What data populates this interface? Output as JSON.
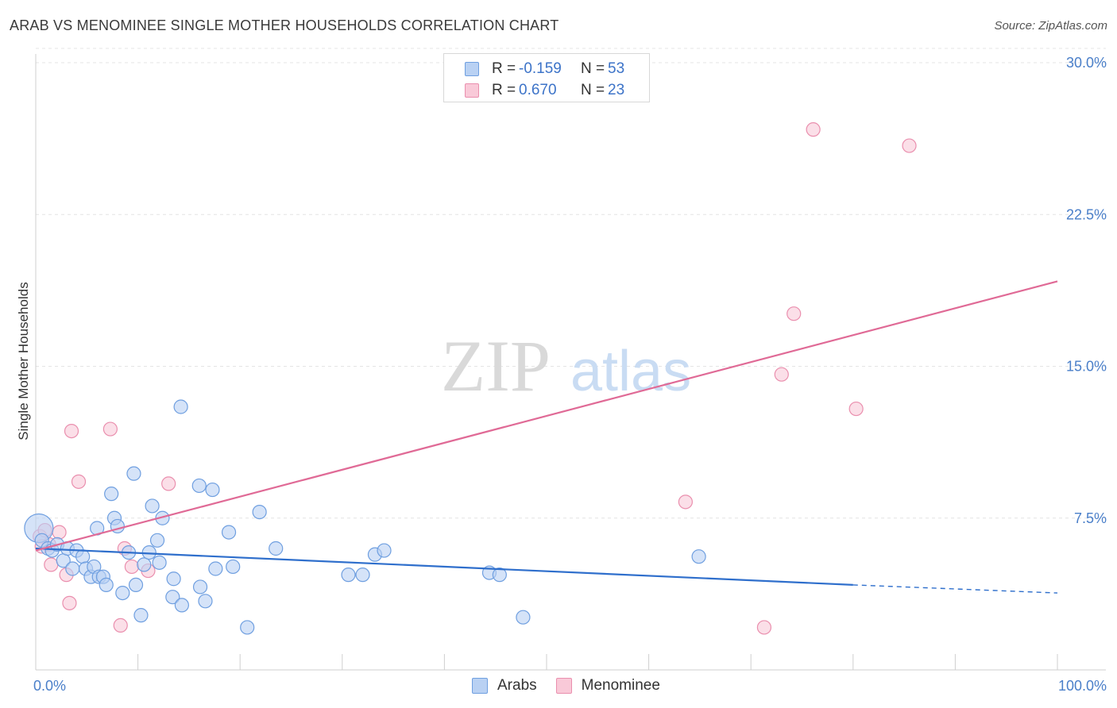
{
  "header": {
    "title": "ARAB VS MENOMINEE SINGLE MOTHER HOUSEHOLDS CORRELATION CHART",
    "source": "Source: ZipAtlas.com"
  },
  "watermark": {
    "zip": "ZIP",
    "atlas": "atlas"
  },
  "legend_top": {
    "rows": [
      {
        "r_label": "R =",
        "r_value": "-0.159",
        "n_label": "N =",
        "n_value": "53"
      },
      {
        "r_label": "R =",
        "r_value": "0.670",
        "n_label": "N =",
        "n_value": "23"
      }
    ]
  },
  "legend_bottom": {
    "items": [
      "Arabs",
      "Menominee"
    ]
  },
  "colors": {
    "arabs_fill": "#b9d1f3",
    "arabs_stroke": "#6f9fe0",
    "arabs_line": "#2f6fcc",
    "menominee_fill": "#f9c9d8",
    "menominee_stroke": "#ea8fae",
    "menominee_line": "#e06a96",
    "tick_text": "#4a7fc9",
    "grid": "#e4e4e4"
  },
  "chart_data": {
    "type": "scatter",
    "title": "ARAB VS MENOMINEE SINGLE MOTHER HOUSEHOLDS CORRELATION CHART",
    "xlabel": "",
    "ylabel": "Single Mother Households",
    "xlim": [
      0,
      100
    ],
    "ylim": [
      0,
      30
    ],
    "x_tick_labels": [
      "0.0%",
      "100.0%"
    ],
    "y_ticks": [
      7.5,
      15.0,
      22.5,
      30.0
    ],
    "y_tick_labels": [
      "7.5%",
      "15.0%",
      "22.5%",
      "30.0%"
    ],
    "grid": true,
    "legend_position": "bottom-center",
    "series": [
      {
        "name": "Arabs",
        "R": -0.159,
        "N": 53,
        "trend": {
          "x0": 0,
          "y0": 6.0,
          "x1": 80,
          "y1": 4.2,
          "dashed_to_x": 100,
          "dashed_to_y": 3.8
        },
        "points": [
          {
            "x": 0.3,
            "y": 7.0,
            "big": true
          },
          {
            "x": 0.6,
            "y": 6.4
          },
          {
            "x": 1.2,
            "y": 6.0
          },
          {
            "x": 1.6,
            "y": 5.9
          },
          {
            "x": 2.1,
            "y": 6.2
          },
          {
            "x": 2.7,
            "y": 5.4
          },
          {
            "x": 3.1,
            "y": 6.0
          },
          {
            "x": 3.6,
            "y": 5.0
          },
          {
            "x": 4.0,
            "y": 5.9
          },
          {
            "x": 4.6,
            "y": 5.6
          },
          {
            "x": 4.9,
            "y": 5.0
          },
          {
            "x": 5.4,
            "y": 4.6
          },
          {
            "x": 5.7,
            "y": 5.1
          },
          {
            "x": 6.2,
            "y": 4.6
          },
          {
            "x": 6.0,
            "y": 7.0
          },
          {
            "x": 6.6,
            "y": 4.6
          },
          {
            "x": 6.9,
            "y": 4.2
          },
          {
            "x": 7.4,
            "y": 8.7
          },
          {
            "x": 7.7,
            "y": 7.5
          },
          {
            "x": 8.0,
            "y": 7.1
          },
          {
            "x": 8.5,
            "y": 3.8
          },
          {
            "x": 9.1,
            "y": 5.8
          },
          {
            "x": 9.6,
            "y": 9.7
          },
          {
            "x": 9.8,
            "y": 4.2
          },
          {
            "x": 10.3,
            "y": 2.7
          },
          {
            "x": 10.6,
            "y": 5.2
          },
          {
            "x": 11.1,
            "y": 5.8
          },
          {
            "x": 11.4,
            "y": 8.1
          },
          {
            "x": 11.9,
            "y": 6.4
          },
          {
            "x": 12.1,
            "y": 5.3
          },
          {
            "x": 12.4,
            "y": 7.5
          },
          {
            "x": 13.5,
            "y": 4.5
          },
          {
            "x": 13.4,
            "y": 3.6
          },
          {
            "x": 14.3,
            "y": 3.2
          },
          {
            "x": 14.2,
            "y": 13.0
          },
          {
            "x": 16.0,
            "y": 9.1
          },
          {
            "x": 16.1,
            "y": 4.1
          },
          {
            "x": 16.6,
            "y": 3.4
          },
          {
            "x": 17.3,
            "y": 8.9
          },
          {
            "x": 17.6,
            "y": 5.0
          },
          {
            "x": 18.9,
            "y": 6.8
          },
          {
            "x": 19.3,
            "y": 5.1
          },
          {
            "x": 20.7,
            "y": 2.1
          },
          {
            "x": 21.9,
            "y": 7.8
          },
          {
            "x": 23.5,
            "y": 6.0
          },
          {
            "x": 30.6,
            "y": 4.7
          },
          {
            "x": 32.0,
            "y": 4.7
          },
          {
            "x": 33.2,
            "y": 5.7
          },
          {
            "x": 34.1,
            "y": 5.9
          },
          {
            "x": 44.4,
            "y": 4.8
          },
          {
            "x": 45.4,
            "y": 4.7
          },
          {
            "x": 47.7,
            "y": 2.6
          },
          {
            "x": 64.9,
            "y": 5.6
          }
        ]
      },
      {
        "name": "Menominee",
        "R": 0.67,
        "N": 23,
        "trend": {
          "x0": 0,
          "y0": 5.9,
          "x1": 100,
          "y1": 19.2
        },
        "points": [
          {
            "x": 0.4,
            "y": 6.6
          },
          {
            "x": 0.9,
            "y": 6.9
          },
          {
            "x": 1.3,
            "y": 6.2
          },
          {
            "x": 1.5,
            "y": 5.2
          },
          {
            "x": 2.3,
            "y": 6.8
          },
          {
            "x": 3.0,
            "y": 4.7
          },
          {
            "x": 3.3,
            "y": 3.3
          },
          {
            "x": 3.5,
            "y": 11.8
          },
          {
            "x": 4.2,
            "y": 9.3
          },
          {
            "x": 7.3,
            "y": 11.9
          },
          {
            "x": 8.3,
            "y": 2.2
          },
          {
            "x": 8.7,
            "y": 6.0
          },
          {
            "x": 9.4,
            "y": 5.1
          },
          {
            "x": 11.0,
            "y": 4.9
          },
          {
            "x": 13.0,
            "y": 9.2
          },
          {
            "x": 63.6,
            "y": 8.3
          },
          {
            "x": 71.3,
            "y": 2.1
          },
          {
            "x": 73.0,
            "y": 14.6
          },
          {
            "x": 74.2,
            "y": 17.6
          },
          {
            "x": 76.1,
            "y": 26.7
          },
          {
            "x": 80.3,
            "y": 12.9
          },
          {
            "x": 85.5,
            "y": 25.9
          },
          {
            "x": 0.6,
            "y": 6.1
          }
        ]
      }
    ]
  }
}
